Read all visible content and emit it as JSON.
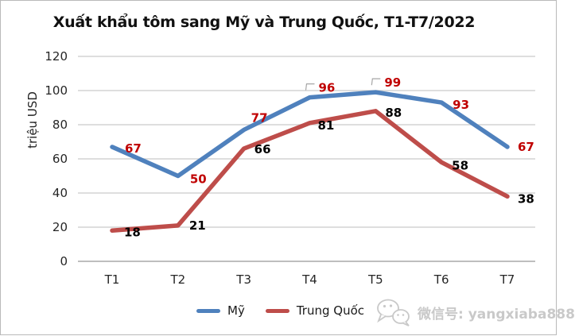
{
  "chart_data": {
    "type": "line",
    "title": "Xuất khẩu tôm sang Mỹ và Trung Quốc, T1-T7/2022",
    "ylabel": "triệu USD",
    "xlabel": "",
    "categories": [
      "T1",
      "T2",
      "T3",
      "T4",
      "T5",
      "T6",
      "T7"
    ],
    "series": [
      {
        "name": "Mỹ",
        "color": "#4F81BD",
        "label_color": "#C00000",
        "values": [
          67,
          50,
          77,
          96,
          99,
          93,
          67
        ]
      },
      {
        "name": "Trung Quốc",
        "color": "#BE4D4A",
        "label_color": "#000000",
        "values": [
          18,
          21,
          66,
          81,
          88,
          58,
          38
        ]
      }
    ],
    "ylim": [
      0,
      120
    ],
    "yticks": [
      0,
      20,
      40,
      60,
      80,
      100,
      120
    ],
    "grid": true,
    "legend_position": "bottom",
    "gridline_color": "#d3d3d3",
    "axis_color": "#b5b5b5",
    "leader_line_color": "#a6a6a6"
  },
  "watermark": {
    "icon": "wechat-icon",
    "text": "微信号: yangxiaba888",
    "color": "#c9c9c9"
  }
}
